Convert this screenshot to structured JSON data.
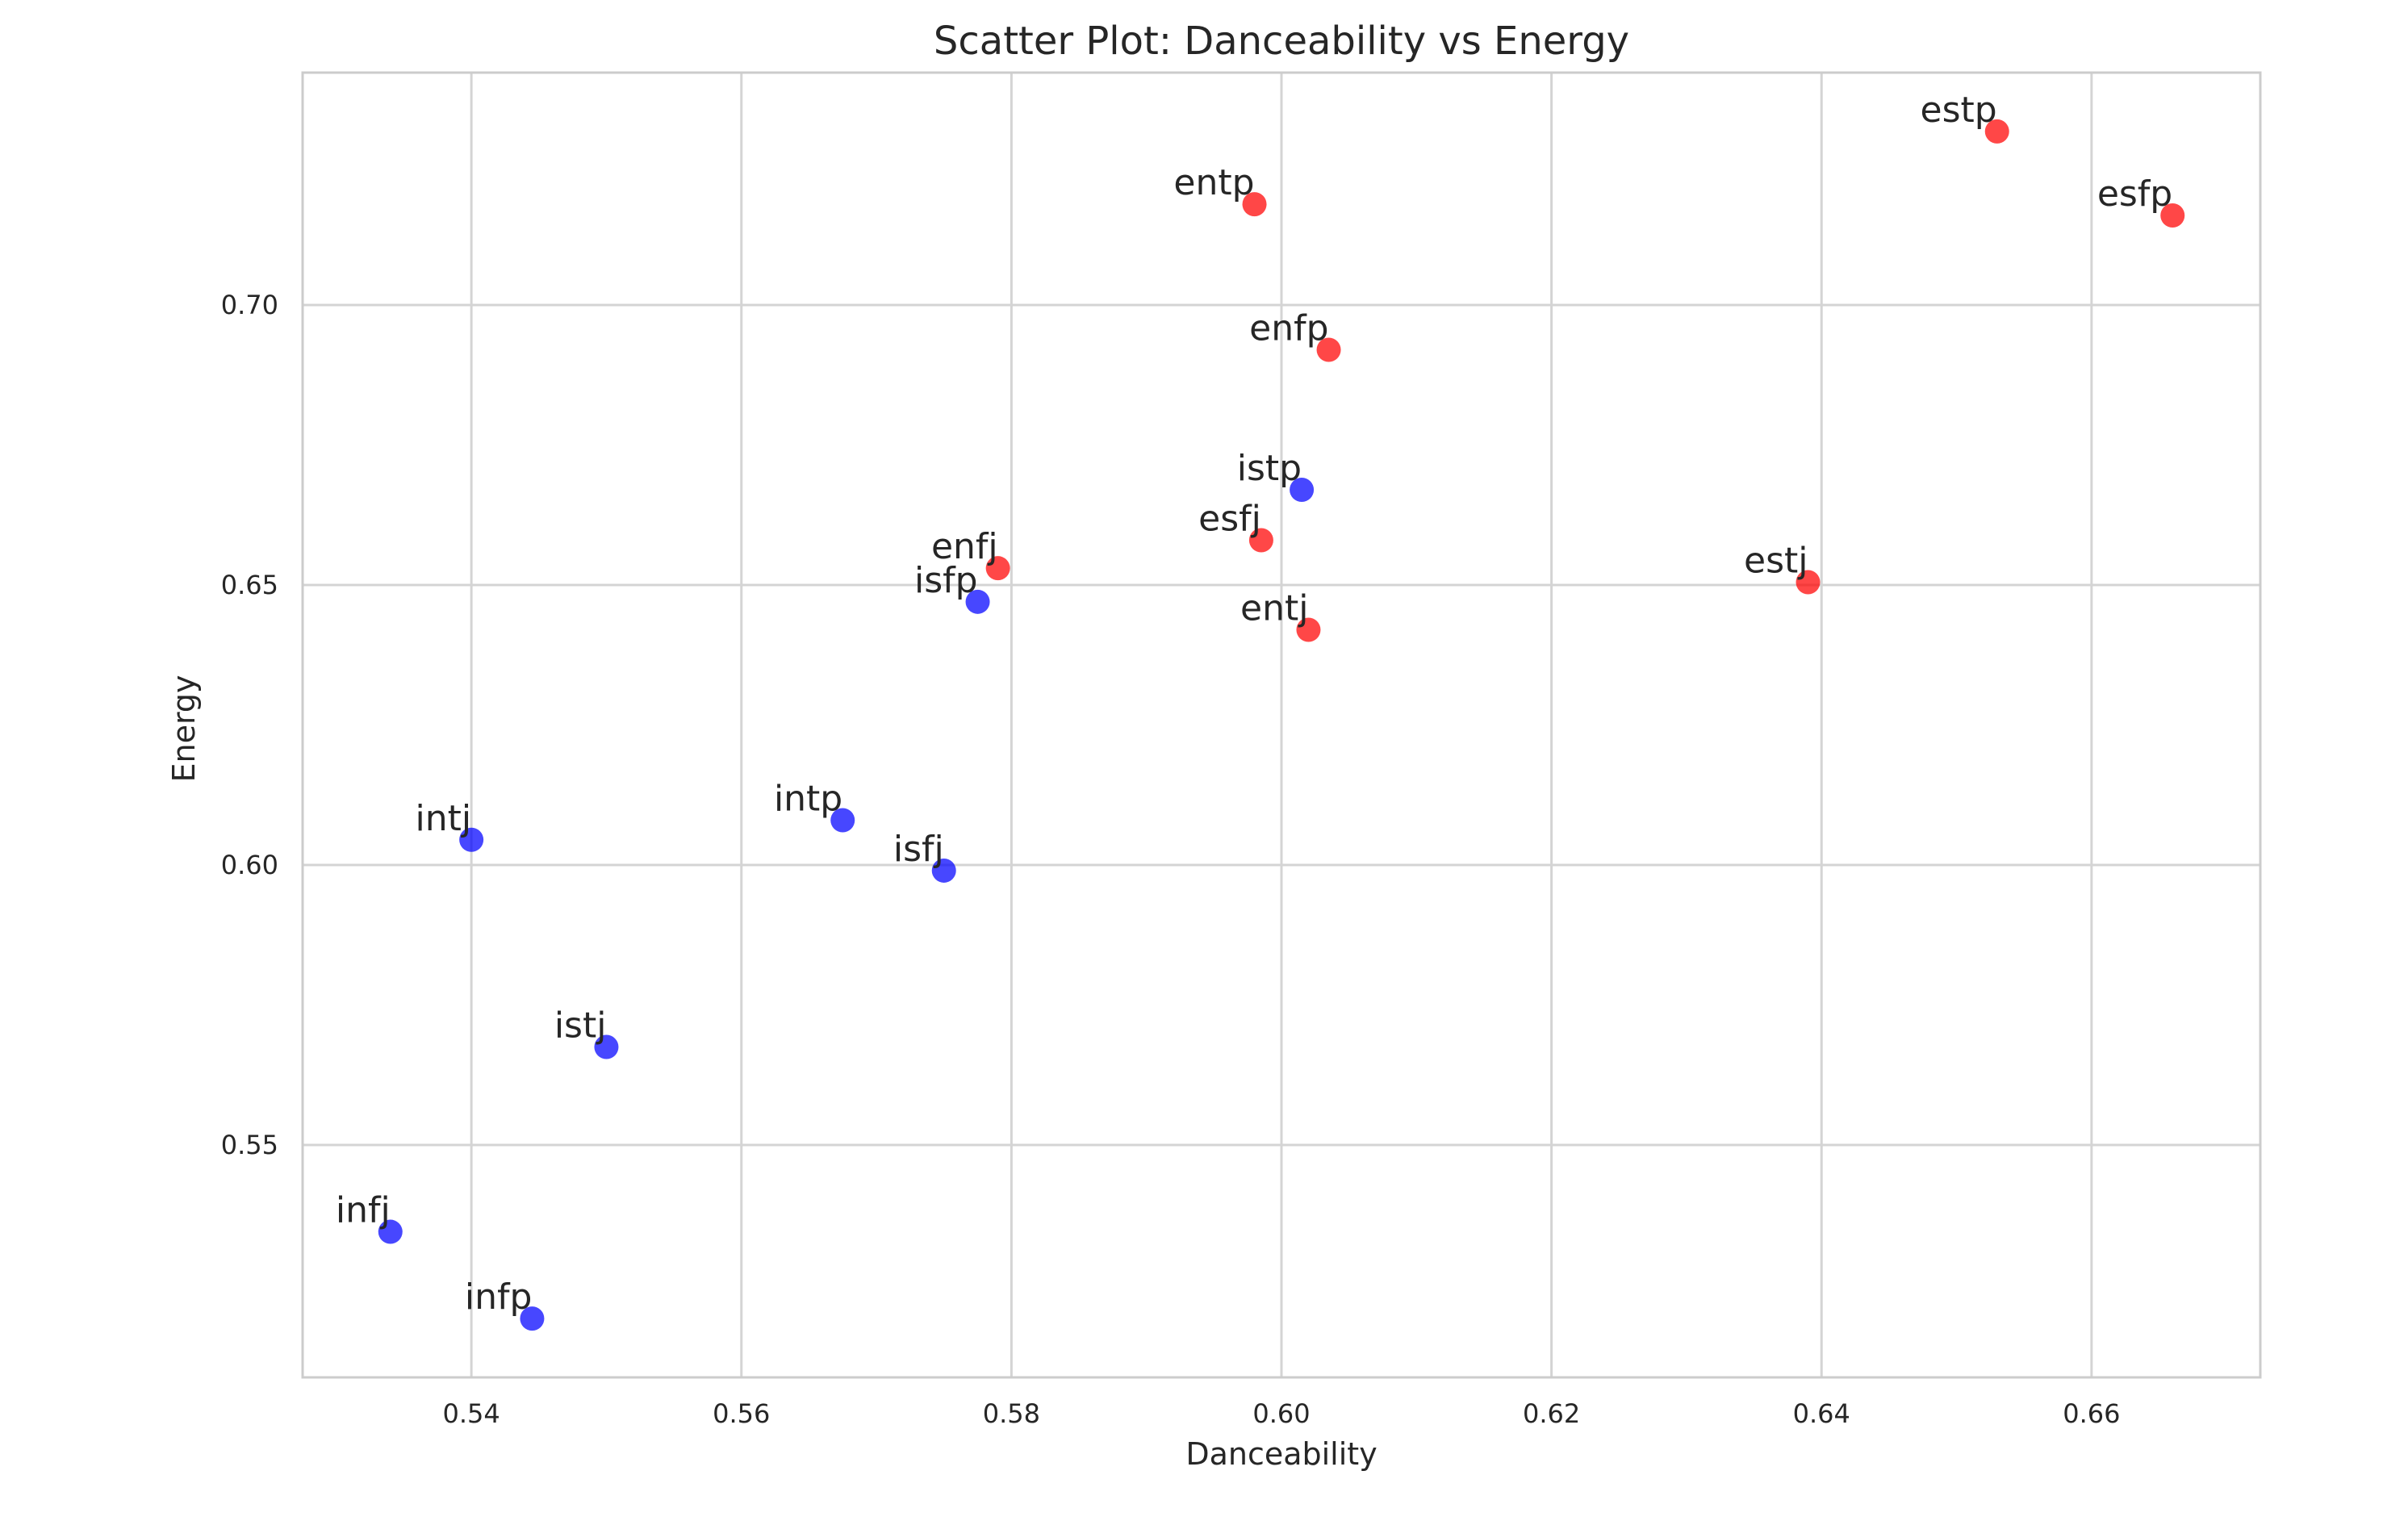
{
  "chart_data": {
    "type": "scatter",
    "title": "Scatter Plot: Danceability vs Energy",
    "xlabel": "Danceability",
    "ylabel": "Energy",
    "xlim": [
      0.5275,
      0.6725
    ],
    "ylim": [
      0.5085,
      0.7415
    ],
    "x_ticks": [
      0.54,
      0.56,
      0.58,
      0.6,
      0.62,
      0.64,
      0.66
    ],
    "y_ticks": [
      0.55,
      0.6,
      0.65,
      0.7
    ],
    "grid": true,
    "colors": {
      "introvert": "#0000ff",
      "extrovert": "#ff0000",
      "grid": "#d4d4d4",
      "axes_edge": "#cccccc",
      "text": "#262626"
    },
    "points": [
      {
        "label": "estp",
        "x": 0.653,
        "y": 0.731,
        "color": "#ff0000"
      },
      {
        "label": "entp",
        "x": 0.598,
        "y": 0.718,
        "color": "#ff0000"
      },
      {
        "label": "esfp",
        "x": 0.666,
        "y": 0.716,
        "color": "#ff0000"
      },
      {
        "label": "enfp",
        "x": 0.6035,
        "y": 0.692,
        "color": "#ff0000"
      },
      {
        "label": "istp",
        "x": 0.6015,
        "y": 0.667,
        "color": "#0000ff"
      },
      {
        "label": "esfj",
        "x": 0.5985,
        "y": 0.658,
        "color": "#ff0000"
      },
      {
        "label": "enfj",
        "x": 0.579,
        "y": 0.653,
        "color": "#ff0000"
      },
      {
        "label": "estj",
        "x": 0.639,
        "y": 0.6505,
        "color": "#ff0000"
      },
      {
        "label": "isfp",
        "x": 0.5775,
        "y": 0.647,
        "color": "#0000ff"
      },
      {
        "label": "entj",
        "x": 0.602,
        "y": 0.642,
        "color": "#ff0000"
      },
      {
        "label": "intp",
        "x": 0.5675,
        "y": 0.608,
        "color": "#0000ff"
      },
      {
        "label": "intj",
        "x": 0.54,
        "y": 0.6045,
        "color": "#0000ff"
      },
      {
        "label": "isfj",
        "x": 0.575,
        "y": 0.599,
        "color": "#0000ff"
      },
      {
        "label": "istj",
        "x": 0.55,
        "y": 0.5675,
        "color": "#0000ff"
      },
      {
        "label": "infj",
        "x": 0.534,
        "y": 0.5345,
        "color": "#0000ff"
      },
      {
        "label": "infp",
        "x": 0.5445,
        "y": 0.519,
        "color": "#0000ff"
      }
    ]
  }
}
